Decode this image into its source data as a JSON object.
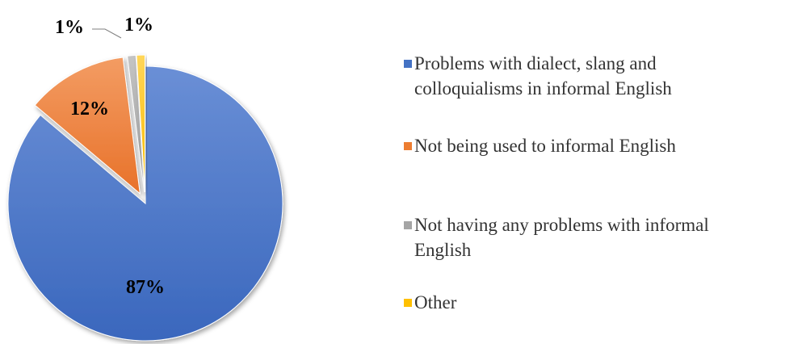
{
  "chart_data": {
    "type": "pie",
    "title": "",
    "slices": [
      {
        "label": "Problems with dialect, slang and colloquialisms in informal English",
        "value": 87,
        "display": "87%",
        "color": "#4472C4"
      },
      {
        "label": "Not being used to informal English",
        "value": 12,
        "display": "12%",
        "color": "#ED7D31"
      },
      {
        "label": "Not having any problems with informal English",
        "value": 1,
        "display": "1%",
        "color": "#A5A5A5"
      },
      {
        "label": "Other",
        "value": 1,
        "display": "1%",
        "color": "#FFC000"
      }
    ],
    "exploded": true,
    "legend_position": "right"
  },
  "legend": {
    "items": [
      {
        "text_line1": "Problems with dialect, slang and",
        "text_line2": "colloquialisms in informal English",
        "color": "#4472C4"
      },
      {
        "text_line1": "Not being used to informal English",
        "text_line2": "",
        "color": "#ED7D31"
      },
      {
        "text_line1": "Not having any problems with informal",
        "text_line2": "English",
        "color": "#A5A5A5"
      },
      {
        "text_line1": "Other",
        "text_line2": "",
        "color": "#FFC000"
      }
    ]
  }
}
